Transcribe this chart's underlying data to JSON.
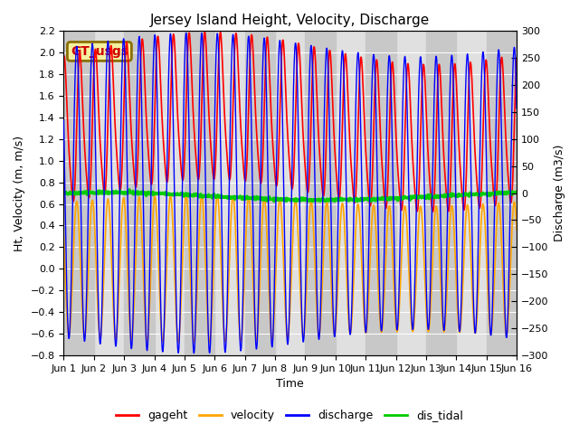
{
  "title": "Jersey Island Height, Velocity, Discharge",
  "xlabel": "Time",
  "ylabel_left": "Ht, Velocity (m, m/s)",
  "ylabel_right": "Discharge (m3/s)",
  "ylim_left": [
    -0.8,
    2.2
  ],
  "ylim_right": [
    -300,
    300
  ],
  "xtick_labels": [
    "Jun 1",
    "Jun 2",
    "Jun 3",
    "Jun 4",
    "Jun 5",
    "Jun 6",
    "Jun 7",
    "Jun 8",
    "Jun 9",
    "Jun 10",
    "Jun 11",
    "Jun 12",
    "Jun 13",
    "Jun 14",
    "Jun 15",
    "Jun 16"
  ],
  "gt_usgs_label": "GT_usgs",
  "legend_labels": [
    "gageht",
    "velocity",
    "discharge",
    "dis_tidal"
  ],
  "colors": {
    "gageht": "#ff0000",
    "velocity": "#ffa500",
    "discharge": "#0000ff",
    "dis_tidal": "#00cc00"
  },
  "background_color": "#ffffff",
  "plot_bg_color": "#e0e0e0",
  "band_color": "#c8c8c8",
  "title_fontsize": 11,
  "label_fontsize": 9,
  "tick_fontsize": 8,
  "n_days": 15,
  "samples_per_day": 96,
  "tidal_period_hours": 12.42,
  "gageht_mean": 1.3,
  "gageht_amp1": 0.65,
  "gageht_amp2": 0.12,
  "velocity_amp": 0.63,
  "discharge_amp_scale": 435.0,
  "dis_tidal_mean": 0.67,
  "dis_tidal_amp": 0.035,
  "yticks_left": [
    -0.8,
    -0.6,
    -0.4,
    -0.2,
    0.0,
    0.2,
    0.4,
    0.6,
    0.8,
    1.0,
    1.2,
    1.4,
    1.6,
    1.8,
    2.0,
    2.2
  ],
  "yticks_right": [
    -300,
    -250,
    -200,
    -150,
    -100,
    -50,
    0,
    50,
    100,
    150,
    200,
    250,
    300
  ]
}
